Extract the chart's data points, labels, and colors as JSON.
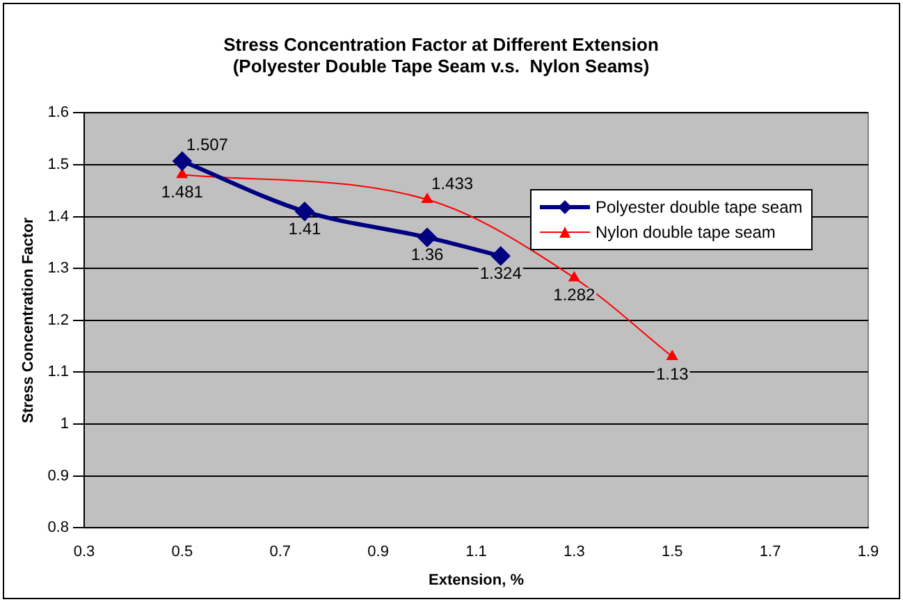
{
  "chart_data": {
    "type": "line",
    "title": "Stress Concentration Factor at Different Extension\n(Polyester Double Tape Seam v.s.  Nylon Seams)",
    "xlabel": "Extension, %",
    "ylabel": "Stress Concentration Factor",
    "series": [
      {
        "name": "Polyester double tape seam",
        "color": "#000080",
        "marker": "diamond",
        "x": [
          0.5,
          0.75,
          1.0,
          1.15
        ],
        "values": [
          1.507,
          1.41,
          1.36,
          1.324
        ]
      },
      {
        "name": "Nylon double tape seam",
        "color": "#ff0000",
        "marker": "triangle",
        "x": [
          0.5,
          1.0,
          1.3,
          1.5
        ],
        "values": [
          1.481,
          1.433,
          1.282,
          1.13
        ]
      }
    ],
    "xlim": [
      0.3,
      1.9
    ],
    "xticks": [
      0.3,
      0.5,
      0.7,
      0.9,
      1.1,
      1.3,
      1.5,
      1.7,
      1.9
    ],
    "ylim": [
      0.8,
      1.6
    ],
    "yticks": [
      0.8,
      0.9,
      1,
      1.1,
      1.2,
      1.3,
      1.4,
      1.5,
      1.6
    ],
    "grid": "y",
    "legend": "top right",
    "data_labels": true
  }
}
